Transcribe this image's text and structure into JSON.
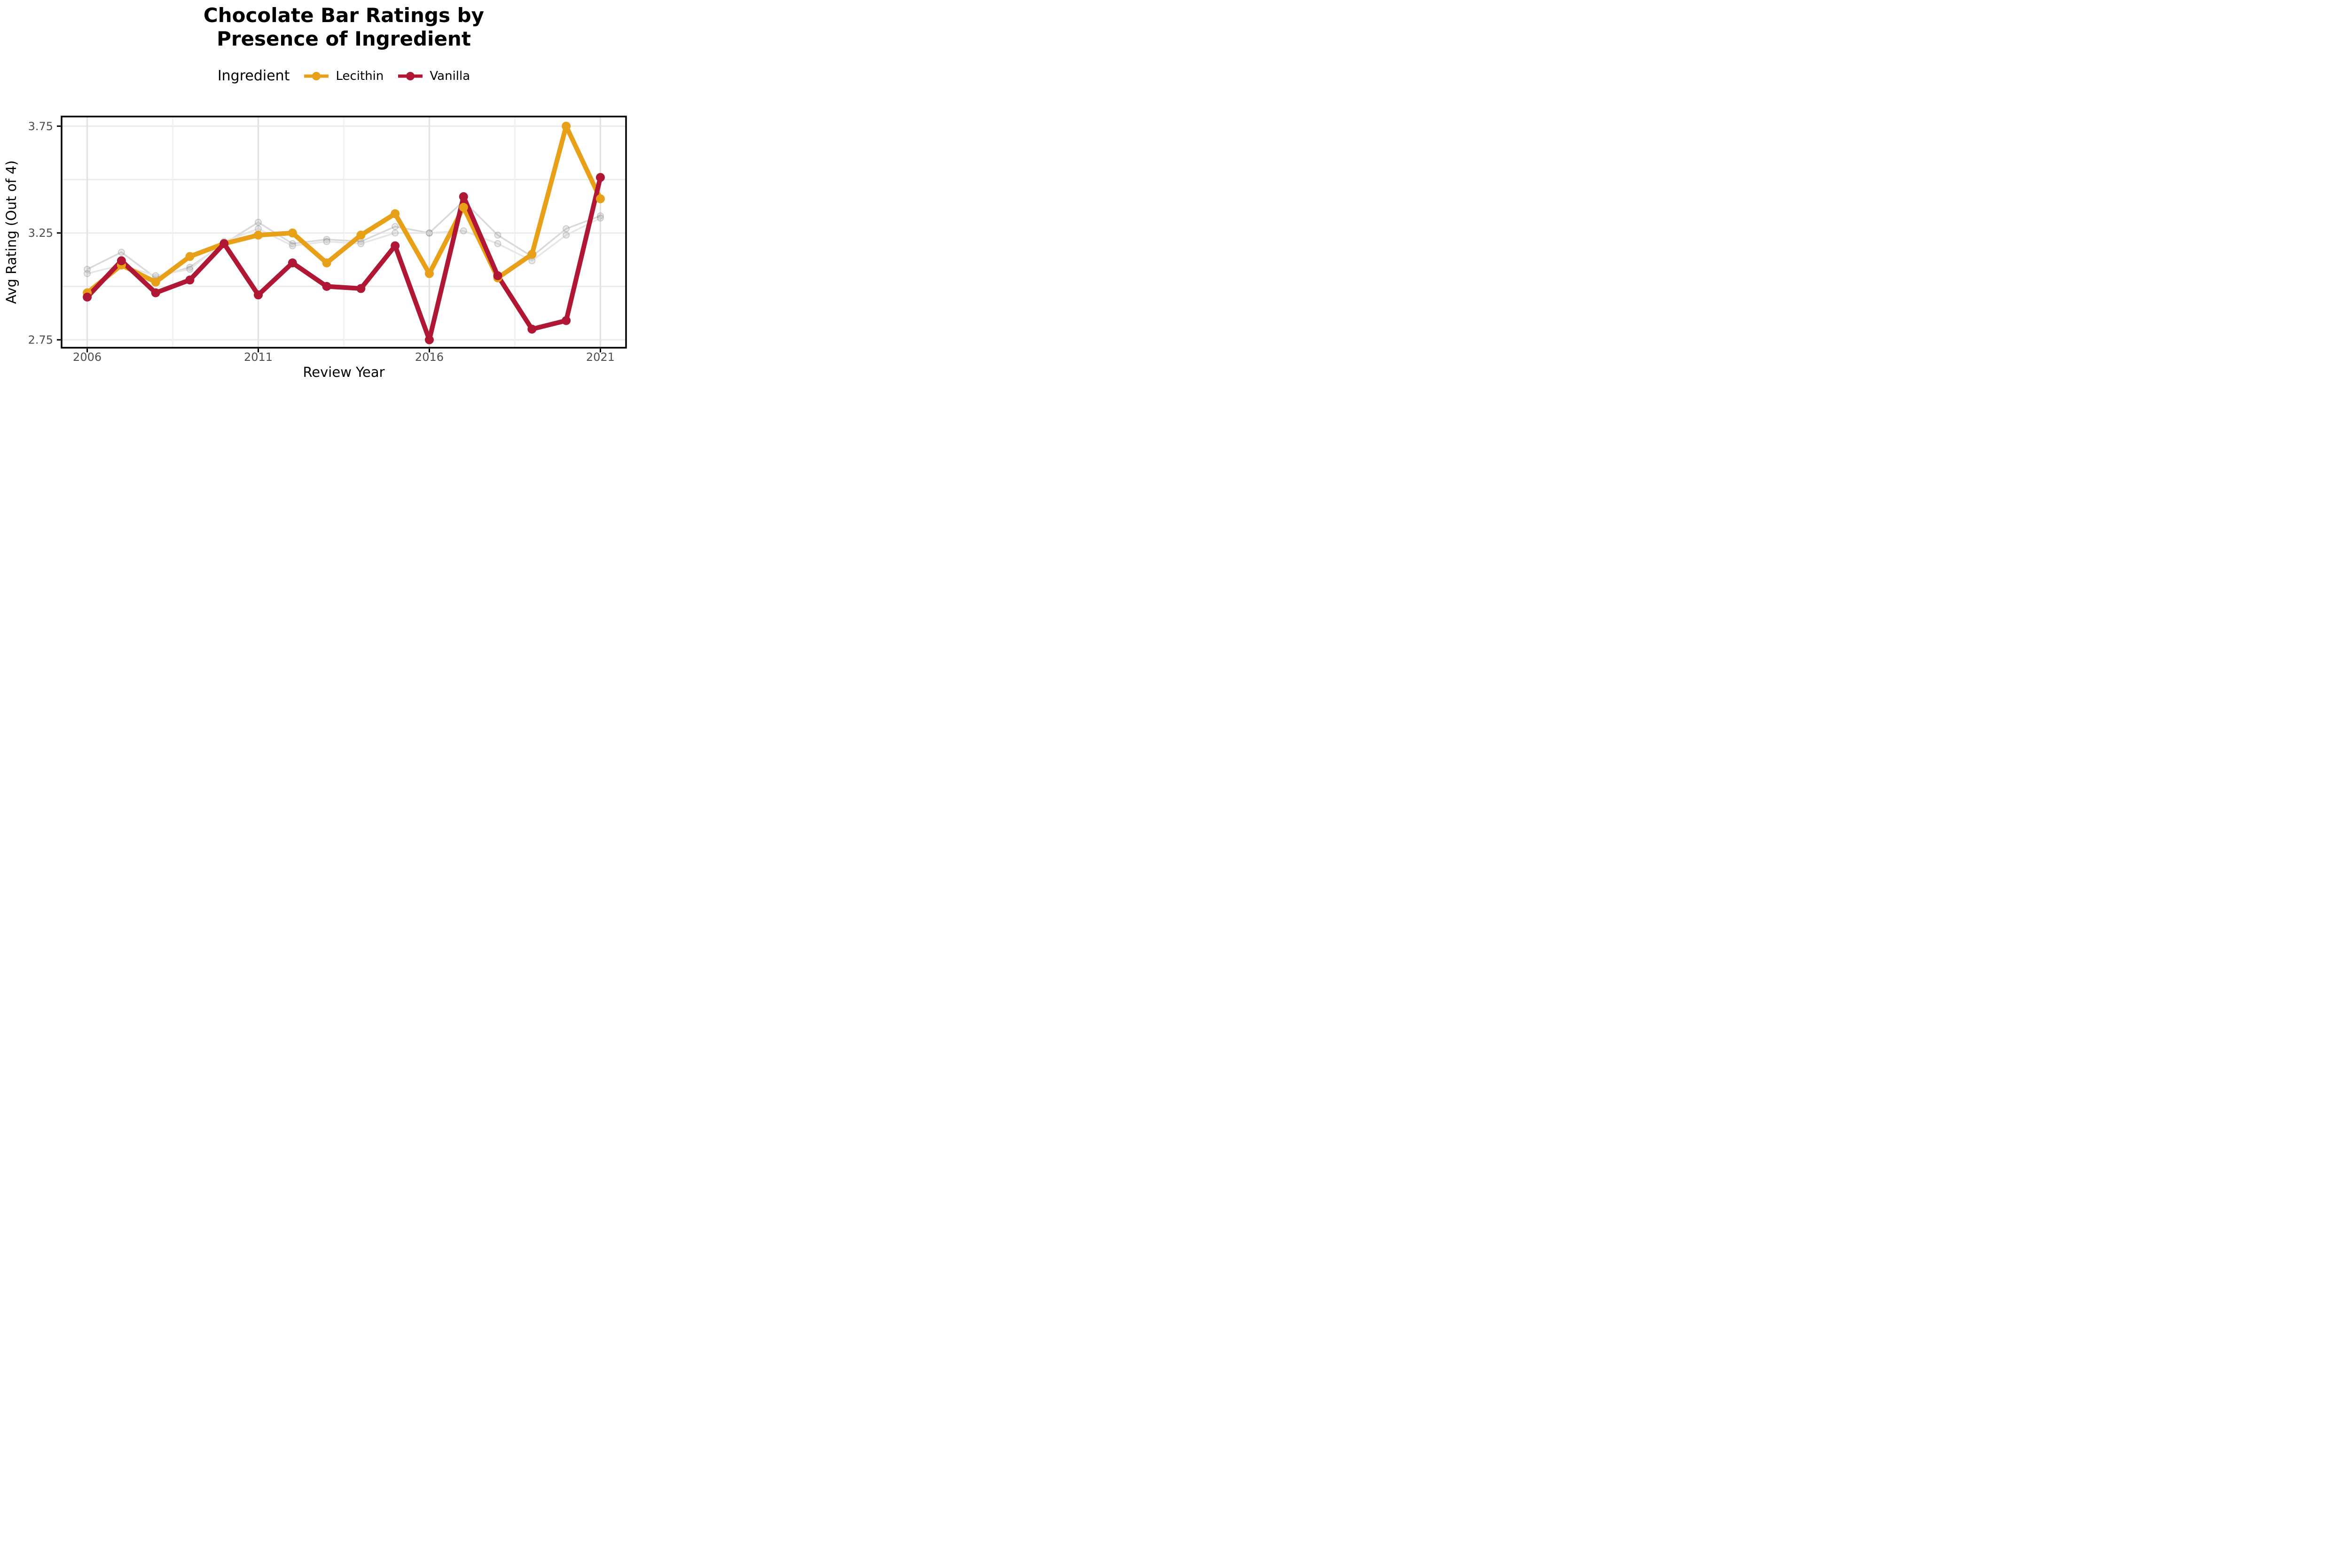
{
  "title": {
    "line1": "Chocolate Bar Ratings by",
    "line2": "Presence of Ingredient"
  },
  "legend": {
    "title": "Ingredient",
    "items": [
      {
        "label": "Lecithin",
        "color": "#E7A017"
      },
      {
        "label": "Vanilla",
        "color": "#B01735"
      }
    ]
  },
  "axes": {
    "x": {
      "label": "Review Year",
      "tick_labels": [
        "2006",
        "2011",
        "2016",
        "2021"
      ],
      "tick_values": [
        2006,
        2011,
        2016,
        2021
      ],
      "minor_gridlines": [
        2008.5,
        2013.5,
        2018.5
      ],
      "domain": [
        2005.25,
        2021.75
      ]
    },
    "y": {
      "label": "Avg Rating (Out of 4)",
      "tick_labels": [
        "2.75",
        "3.25",
        "3.75"
      ],
      "tick_values": [
        2.75,
        3.25,
        3.75
      ],
      "gridlines": [
        2.75,
        3.0,
        3.25,
        3.5,
        3.75
      ],
      "domain": [
        2.713,
        3.795
      ]
    }
  },
  "chart_data": {
    "type": "line",
    "title": "Chocolate Bar Ratings by Presence of Ingredient",
    "xlabel": "Review Year",
    "ylabel": "Avg Rating (Out of 4)",
    "xlim": [
      2005.25,
      2021.75
    ],
    "ylim": [
      2.71,
      3.8
    ],
    "grid": true,
    "legend_position": "top",
    "x": [
      2006,
      2007,
      2008,
      2009,
      2010,
      2011,
      2012,
      2013,
      2014,
      2015,
      2016,
      2017,
      2018,
      2019,
      2020,
      2021
    ],
    "series": [
      {
        "name": "Lecithin",
        "color": "#E7A017",
        "de_emphasized": false,
        "values": [
          2.97,
          3.1,
          3.02,
          3.14,
          3.2,
          3.24,
          3.25,
          3.11,
          3.24,
          3.34,
          3.06,
          3.37,
          3.04,
          3.15,
          3.75,
          3.41
        ]
      },
      {
        "name": "Vanilla",
        "color": "#B01735",
        "de_emphasized": false,
        "values": [
          2.95,
          3.12,
          2.97,
          3.03,
          3.2,
          2.96,
          3.11,
          3.0,
          2.99,
          3.19,
          2.75,
          3.42,
          3.05,
          2.8,
          2.84,
          3.51
        ]
      },
      {
        "name": "",
        "color": "#D9D9D9",
        "de_emphasized": true,
        "values": [
          3.08,
          3.16,
          3.04,
          3.09,
          3.2,
          3.3,
          3.2,
          3.22,
          3.21,
          3.28,
          3.25,
          3.4,
          3.24,
          3.14,
          3.27,
          3.33
        ]
      },
      {
        "name": "",
        "color": "#E6E6E6",
        "de_emphasized": true,
        "values": [
          3.06,
          3.1,
          3.05,
          3.08,
          3.21,
          3.27,
          3.19,
          3.21,
          3.2,
          3.25,
          3.25,
          3.26,
          3.2,
          3.12,
          3.24,
          3.32
        ]
      }
    ]
  },
  "style": {
    "grid_h_color": "#EBEBEB",
    "grid_major_v_color": "#E4E4E4",
    "grid_minor_v_color": "#F0F0F0",
    "panel_border_color": "#000000",
    "tick_label_color": "#4D4D4D",
    "axis_title_color": "#000000"
  }
}
